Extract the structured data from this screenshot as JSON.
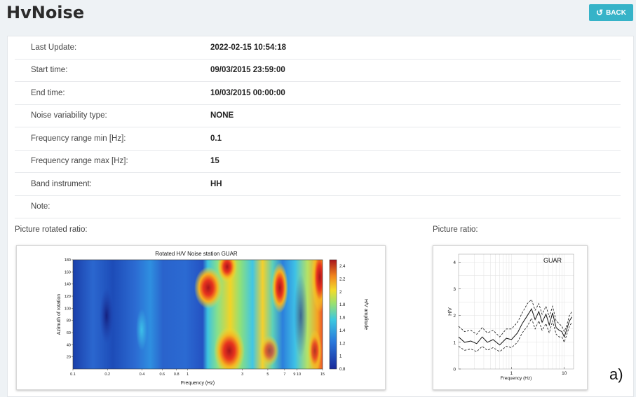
{
  "header": {
    "title": "HvNoise",
    "back_label": "BACK"
  },
  "details": [
    {
      "label": "Last Update:",
      "value": "2022-02-15 10:54:18"
    },
    {
      "label": "Start time:",
      "value": "09/03/2015 23:59:00"
    },
    {
      "label": "End time:",
      "value": "10/03/2015 00:00:00"
    },
    {
      "label": "Noise variability type:",
      "value": "NONE"
    },
    {
      "label": "Frequency range min [Hz]:",
      "value": "0.1"
    },
    {
      "label": "Frequency range max [Hz]:",
      "value": "15"
    },
    {
      "label": "Band instrument:",
      "value": "HH"
    },
    {
      "label": "Note:",
      "value": ""
    }
  ],
  "pictures": {
    "rotated_label": "Picture rotated ratio:",
    "ratio_label": "Picture ratio:",
    "panel_letter": "a)"
  },
  "chart_data": [
    {
      "type": "heatmap",
      "title": "Rotated H/V Noise station GUAR",
      "xlabel": "Frequency (Hz)",
      "ylabel": "Azimuth of rotation",
      "colorbar_label": "H/V amplitude",
      "x_scale": "log",
      "xlim": [
        0.1,
        15
      ],
      "ylim": [
        0,
        180
      ],
      "x_ticks": [
        "0.1",
        "0.2",
        "0.4",
        "0.6",
        "0.8",
        "1",
        "3",
        "5",
        "7",
        "9 10",
        "15"
      ],
      "y_ticks": [
        "20",
        "40",
        "60",
        "80",
        "100",
        "120",
        "140",
        "160",
        "180"
      ],
      "colorbar_ticks": [
        "0.8",
        "1",
        "1.2",
        "1.4",
        "1.6",
        "1.8",
        "2",
        "2.2",
        "2.4"
      ],
      "colorbar_range": [
        0.8,
        2.5
      ]
    },
    {
      "type": "line",
      "annotation": "GUAR",
      "xlabel": "Frequency (Hz)",
      "ylabel": "H/V",
      "x_scale": "log",
      "xlim": [
        0.1,
        15
      ],
      "ylim": [
        0,
        4.3
      ],
      "x_ticks": [
        "1",
        "10"
      ],
      "y_ticks": [
        "0",
        "1",
        "2",
        "3",
        "4"
      ],
      "x": [
        0.1,
        0.13,
        0.17,
        0.22,
        0.28,
        0.35,
        0.45,
        0.6,
        0.8,
        1.0,
        1.3,
        1.6,
        2.0,
        2.4,
        2.8,
        3.3,
        3.8,
        4.5,
        5.2,
        6.0,
        7.0,
        8.0,
        9.0,
        10.0,
        11.0,
        12.5,
        14.0
      ],
      "series": [
        {
          "values": [
            1.2,
            1.0,
            1.05,
            0.95,
            1.2,
            1.0,
            1.1,
            0.9,
            1.15,
            1.1,
            1.35,
            1.7,
            2.0,
            2.25,
            1.85,
            2.15,
            1.75,
            2.05,
            1.65,
            2.1,
            1.55,
            1.45,
            1.4,
            1.2,
            1.45,
            1.8,
            1.95
          ]
        },
        {
          "values": [
            1.6,
            1.4,
            1.45,
            1.3,
            1.55,
            1.35,
            1.45,
            1.2,
            1.5,
            1.5,
            1.75,
            2.1,
            2.45,
            2.6,
            2.2,
            2.45,
            2.05,
            2.35,
            1.95,
            2.35,
            1.8,
            1.7,
            1.6,
            1.4,
            1.6,
            2.0,
            2.15
          ]
        },
        {
          "values": [
            0.85,
            0.7,
            0.75,
            0.65,
            0.85,
            0.7,
            0.8,
            0.65,
            0.85,
            0.8,
            1.0,
            1.35,
            1.6,
            1.9,
            1.5,
            1.8,
            1.45,
            1.7,
            1.35,
            1.8,
            1.3,
            1.2,
            1.2,
            1.0,
            1.25,
            1.6,
            1.75
          ]
        }
      ]
    }
  ]
}
